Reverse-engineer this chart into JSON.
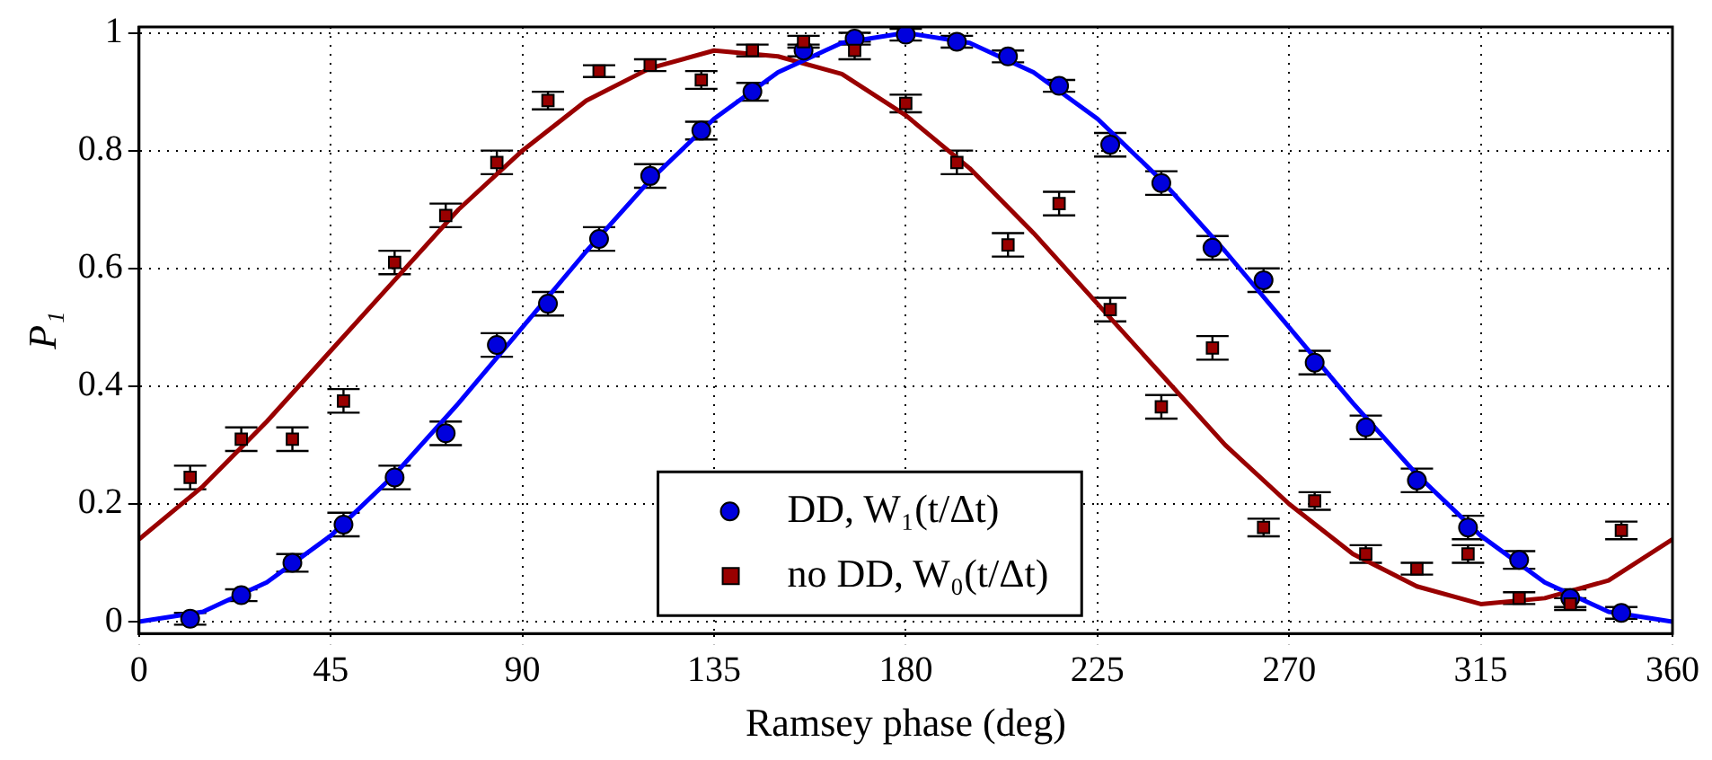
{
  "chart_data": {
    "type": "scatter",
    "xlabel": "Ramsey phase (deg)",
    "ylabel": "P₁",
    "xlim": [
      0,
      360
    ],
    "xticks": [
      0,
      45,
      90,
      135,
      180,
      225,
      270,
      315,
      360
    ],
    "ylim": [
      -0.02,
      1.01
    ],
    "yticks": [
      0,
      0.2,
      0.4,
      0.6,
      0.8,
      1
    ],
    "grid": true,
    "legend": "bottom",
    "series": [
      {
        "name": "DD, W₁(t/Δt)",
        "marker": "circle",
        "color": "#0000dd",
        "x": [
          12,
          24,
          36,
          48,
          60,
          72,
          84,
          96,
          108,
          120,
          132,
          144,
          156,
          168,
          180,
          192,
          204,
          216,
          228,
          240,
          252,
          264,
          276,
          288,
          300,
          312,
          324,
          336,
          348
        ],
        "values": [
          0.005,
          0.045,
          0.1,
          0.165,
          0.245,
          0.32,
          0.47,
          0.54,
          0.65,
          0.757,
          0.834,
          0.9,
          0.97,
          0.99,
          0.997,
          0.985,
          0.96,
          0.91,
          0.81,
          0.745,
          0.635,
          0.58,
          0.44,
          0.33,
          0.24,
          0.16,
          0.105,
          0.04,
          0.015
        ],
        "errors": [
          0.01,
          0.01,
          0.015,
          0.02,
          0.02,
          0.02,
          0.02,
          0.02,
          0.02,
          0.02,
          0.015,
          0.015,
          0.01,
          0.01,
          0.01,
          0.01,
          0.01,
          0.01,
          0.02,
          0.02,
          0.02,
          0.02,
          0.02,
          0.02,
          0.02,
          0.02,
          0.015,
          0.015,
          0.01
        ]
      },
      {
        "name": "no DD, W₀(t/Δt)",
        "marker": "square",
        "color": "#990000",
        "x": [
          12,
          24,
          36,
          48,
          60,
          72,
          84,
          96,
          108,
          120,
          132,
          144,
          156,
          168,
          180,
          192,
          204,
          216,
          228,
          240,
          252,
          264,
          276,
          288,
          300,
          312,
          324,
          336,
          348
        ],
        "values": [
          0.245,
          0.31,
          0.31,
          0.375,
          0.61,
          0.69,
          0.78,
          0.885,
          0.935,
          0.945,
          0.92,
          0.97,
          0.985,
          0.97,
          0.88,
          0.78,
          0.64,
          0.71,
          0.53,
          0.365,
          0.465,
          0.16,
          0.205,
          0.115,
          0.09,
          0.115,
          0.04,
          0.03,
          0.155
        ],
        "errors": [
          0.02,
          0.02,
          0.02,
          0.02,
          0.02,
          0.02,
          0.02,
          0.015,
          0.01,
          0.01,
          0.015,
          0.01,
          0.01,
          0.015,
          0.015,
          0.02,
          0.02,
          0.02,
          0.02,
          0.02,
          0.02,
          0.015,
          0.015,
          0.015,
          0.01,
          0.015,
          0.01,
          0.01,
          0.015
        ]
      },
      {
        "type": "line",
        "marker": "none",
        "line_style": "solid",
        "color": "#0000ff",
        "x": [
          0,
          15,
          30,
          45,
          60,
          75,
          90,
          105,
          120,
          135,
          150,
          165,
          180,
          195,
          210,
          225,
          240,
          255,
          270,
          285,
          300,
          315,
          330,
          345,
          360
        ],
        "values": [
          0,
          0.017,
          0.067,
          0.146,
          0.25,
          0.371,
          0.5,
          0.629,
          0.75,
          0.854,
          0.933,
          0.983,
          1,
          0.983,
          0.933,
          0.854,
          0.75,
          0.629,
          0.5,
          0.371,
          0.25,
          0.146,
          0.067,
          0.017,
          0
        ]
      },
      {
        "type": "line",
        "marker": "none",
        "line_style": "solid",
        "color": "#990000",
        "x": [
          0,
          15,
          30,
          45,
          60,
          75,
          90,
          105,
          120,
          135,
          150,
          165,
          180,
          195,
          210,
          225,
          240,
          255,
          270,
          285,
          300,
          315,
          330,
          345,
          360
        ],
        "values": [
          0.14,
          0.23,
          0.34,
          0.46,
          0.58,
          0.7,
          0.8,
          0.885,
          0.94,
          0.97,
          0.96,
          0.93,
          0.86,
          0.77,
          0.66,
          0.54,
          0.42,
          0.3,
          0.2,
          0.115,
          0.06,
          0.03,
          0.04,
          0.07,
          0.14
        ]
      }
    ]
  }
}
